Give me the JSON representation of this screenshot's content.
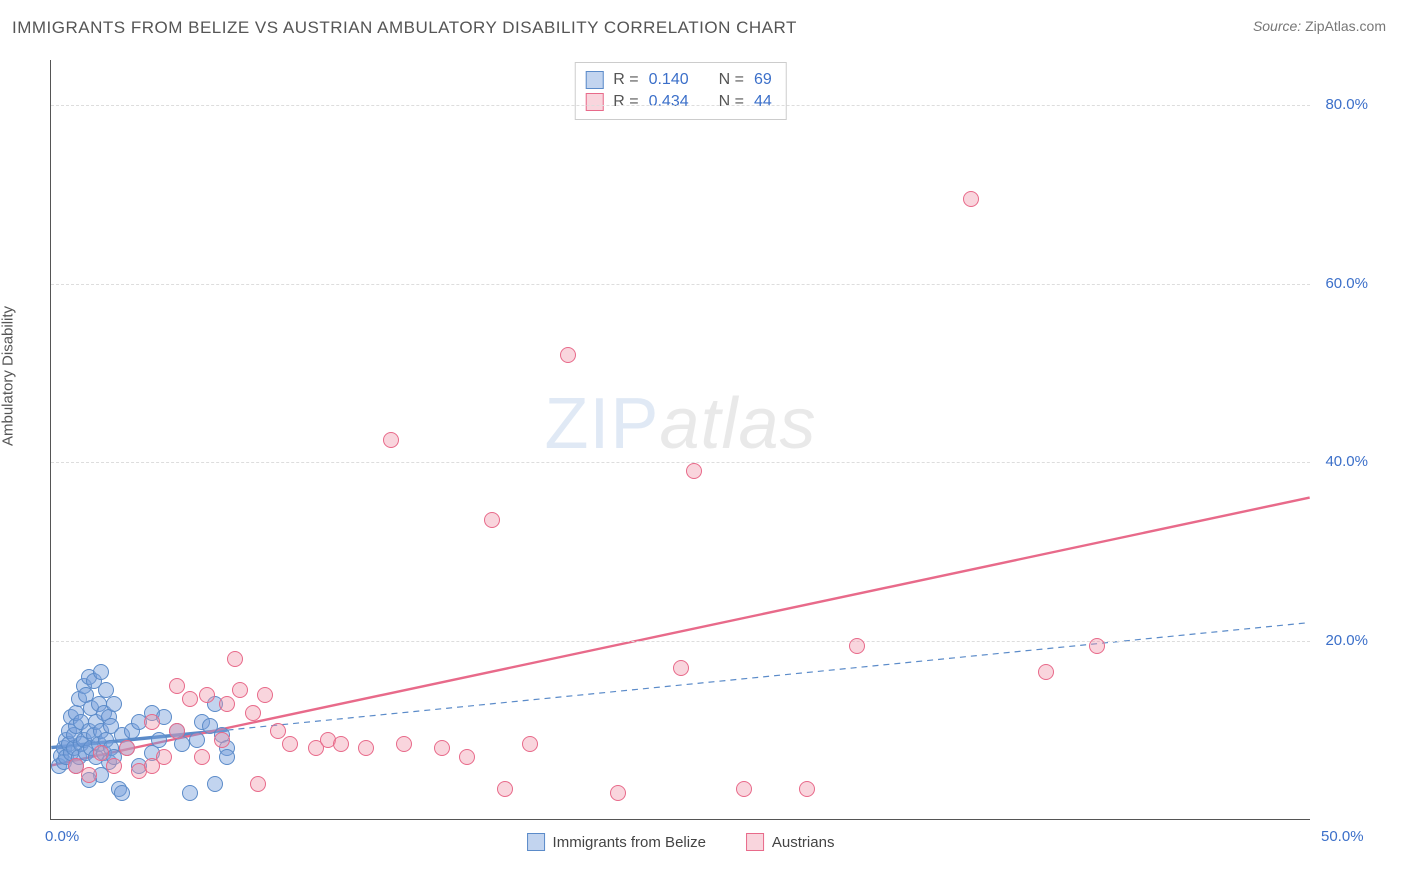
{
  "title": "IMMIGRANTS FROM BELIZE VS AUSTRIAN AMBULATORY DISABILITY CORRELATION CHART",
  "source_label": "Source:",
  "source_value": "ZipAtlas.com",
  "ylabel": "Ambulatory Disability",
  "watermark_zip": "ZIP",
  "watermark_atlas": "atlas",
  "chart": {
    "type": "scatter",
    "xlim": [
      0,
      50
    ],
    "ylim": [
      0,
      85
    ],
    "background_color": "#ffffff",
    "grid_color": "#dddddd",
    "grid_dash": "4,4",
    "axis_color": "#555555",
    "marker_radius": 8,
    "yticks": [
      {
        "v": 20,
        "label": "20.0%"
      },
      {
        "v": 40,
        "label": "40.0%"
      },
      {
        "v": 60,
        "label": "60.0%"
      },
      {
        "v": 80,
        "label": "80.0%"
      }
    ],
    "xticks": [
      {
        "v": 0,
        "label": "0.0%"
      },
      {
        "v": 50,
        "label": "50.0%"
      }
    ],
    "tick_color": "#3b6fc9",
    "tick_fontsize": 15
  },
  "series": [
    {
      "key": "belize",
      "name": "Immigrants from Belize",
      "fill": "rgba(120,160,220,0.45)",
      "stroke": "#5b8bc9",
      "r_value": "0.140",
      "n_value": "69",
      "trend": {
        "y_at_x0": 8.0,
        "y_at_xmax": 22.0,
        "color": "#5b8bc9",
        "width": 1.2,
        "dash": "6,5",
        "solid_until_x": 7
      },
      "points": [
        [
          0.3,
          6.0
        ],
        [
          0.4,
          7.2
        ],
        [
          0.5,
          8.0
        ],
        [
          0.5,
          6.5
        ],
        [
          0.6,
          9.0
        ],
        [
          0.6,
          7.0
        ],
        [
          0.7,
          8.5
        ],
        [
          0.7,
          10.0
        ],
        [
          0.8,
          7.5
        ],
        [
          0.8,
          11.5
        ],
        [
          0.9,
          8.0
        ],
        [
          0.9,
          9.5
        ],
        [
          1.0,
          6.0
        ],
        [
          1.0,
          10.5
        ],
        [
          1.0,
          12.0
        ],
        [
          1.1,
          7.0
        ],
        [
          1.1,
          13.5
        ],
        [
          1.2,
          8.5
        ],
        [
          1.2,
          11.0
        ],
        [
          1.3,
          15.0
        ],
        [
          1.3,
          9.0
        ],
        [
          1.4,
          7.5
        ],
        [
          1.4,
          14.0
        ],
        [
          1.5,
          10.0
        ],
        [
          1.5,
          16.0
        ],
        [
          1.6,
          8.0
        ],
        [
          1.6,
          12.5
        ],
        [
          1.7,
          9.5
        ],
        [
          1.7,
          15.5
        ],
        [
          1.8,
          7.0
        ],
        [
          1.8,
          11.0
        ],
        [
          1.9,
          8.5
        ],
        [
          1.9,
          13.0
        ],
        [
          2.0,
          10.0
        ],
        [
          2.0,
          16.5
        ],
        [
          2.1,
          7.5
        ],
        [
          2.1,
          12.0
        ],
        [
          2.2,
          9.0
        ],
        [
          2.2,
          14.5
        ],
        [
          2.3,
          6.5
        ],
        [
          2.3,
          11.5
        ],
        [
          2.4,
          8.0
        ],
        [
          2.4,
          10.5
        ],
        [
          2.5,
          7.0
        ],
        [
          2.5,
          13.0
        ],
        [
          2.7,
          3.5
        ],
        [
          2.8,
          3.0
        ],
        [
          2.8,
          9.5
        ],
        [
          3.0,
          8.0
        ],
        [
          3.2,
          10.0
        ],
        [
          3.5,
          6.0
        ],
        [
          3.5,
          11.0
        ],
        [
          4.0,
          12.0
        ],
        [
          4.0,
          7.5
        ],
        [
          4.3,
          9.0
        ],
        [
          4.5,
          11.5
        ],
        [
          5.0,
          10.0
        ],
        [
          5.2,
          8.5
        ],
        [
          5.5,
          3.0
        ],
        [
          5.8,
          9.0
        ],
        [
          6.0,
          11.0
        ],
        [
          6.3,
          10.5
        ],
        [
          6.5,
          13.0
        ],
        [
          6.8,
          9.5
        ],
        [
          7.0,
          8.0
        ],
        [
          7.0,
          7.0
        ],
        [
          6.5,
          4.0
        ],
        [
          2.0,
          5.0
        ],
        [
          1.5,
          4.5
        ]
      ]
    },
    {
      "key": "austrians",
      "name": "Austrians",
      "fill": "rgba(240,150,170,0.40)",
      "stroke": "#e86a8a",
      "r_value": "0.434",
      "n_value": "44",
      "trend": {
        "y_at_x0": 6.0,
        "y_at_xmax": 36.0,
        "color": "#e86a8a",
        "width": 2.4,
        "dash": null,
        "solid_until_x": 50
      },
      "points": [
        [
          1.0,
          6.0
        ],
        [
          1.5,
          5.0
        ],
        [
          2.0,
          7.5
        ],
        [
          2.5,
          6.0
        ],
        [
          3.0,
          8.0
        ],
        [
          3.5,
          5.5
        ],
        [
          4.0,
          11.0
        ],
        [
          4.5,
          7.0
        ],
        [
          5.0,
          15.0
        ],
        [
          5.0,
          10.0
        ],
        [
          5.5,
          13.5
        ],
        [
          6.0,
          7.0
        ],
        [
          6.2,
          14.0
        ],
        [
          6.8,
          9.0
        ],
        [
          7.0,
          13.0
        ],
        [
          7.3,
          18.0
        ],
        [
          7.5,
          14.5
        ],
        [
          8.0,
          12.0
        ],
        [
          8.2,
          4.0
        ],
        [
          8.5,
          14.0
        ],
        [
          9.0,
          10.0
        ],
        [
          9.5,
          8.5
        ],
        [
          10.5,
          8.0
        ],
        [
          11.0,
          9.0
        ],
        [
          11.5,
          8.5
        ],
        [
          12.5,
          8.0
        ],
        [
          13.5,
          42.5
        ],
        [
          14.0,
          8.5
        ],
        [
          15.5,
          8.0
        ],
        [
          16.5,
          7.0
        ],
        [
          17.5,
          33.5
        ],
        [
          18.0,
          3.5
        ],
        [
          19.0,
          8.5
        ],
        [
          20.5,
          52.0
        ],
        [
          22.5,
          3.0
        ],
        [
          25.0,
          17.0
        ],
        [
          25.5,
          39.0
        ],
        [
          27.5,
          3.5
        ],
        [
          30.0,
          3.5
        ],
        [
          32.0,
          19.5
        ],
        [
          36.5,
          69.5
        ],
        [
          39.5,
          16.5
        ],
        [
          41.5,
          19.5
        ],
        [
          4.0,
          6.0
        ]
      ]
    }
  ],
  "top_legend": {
    "r_label": "R =",
    "n_label": "N ="
  },
  "bottom_legend": {}
}
